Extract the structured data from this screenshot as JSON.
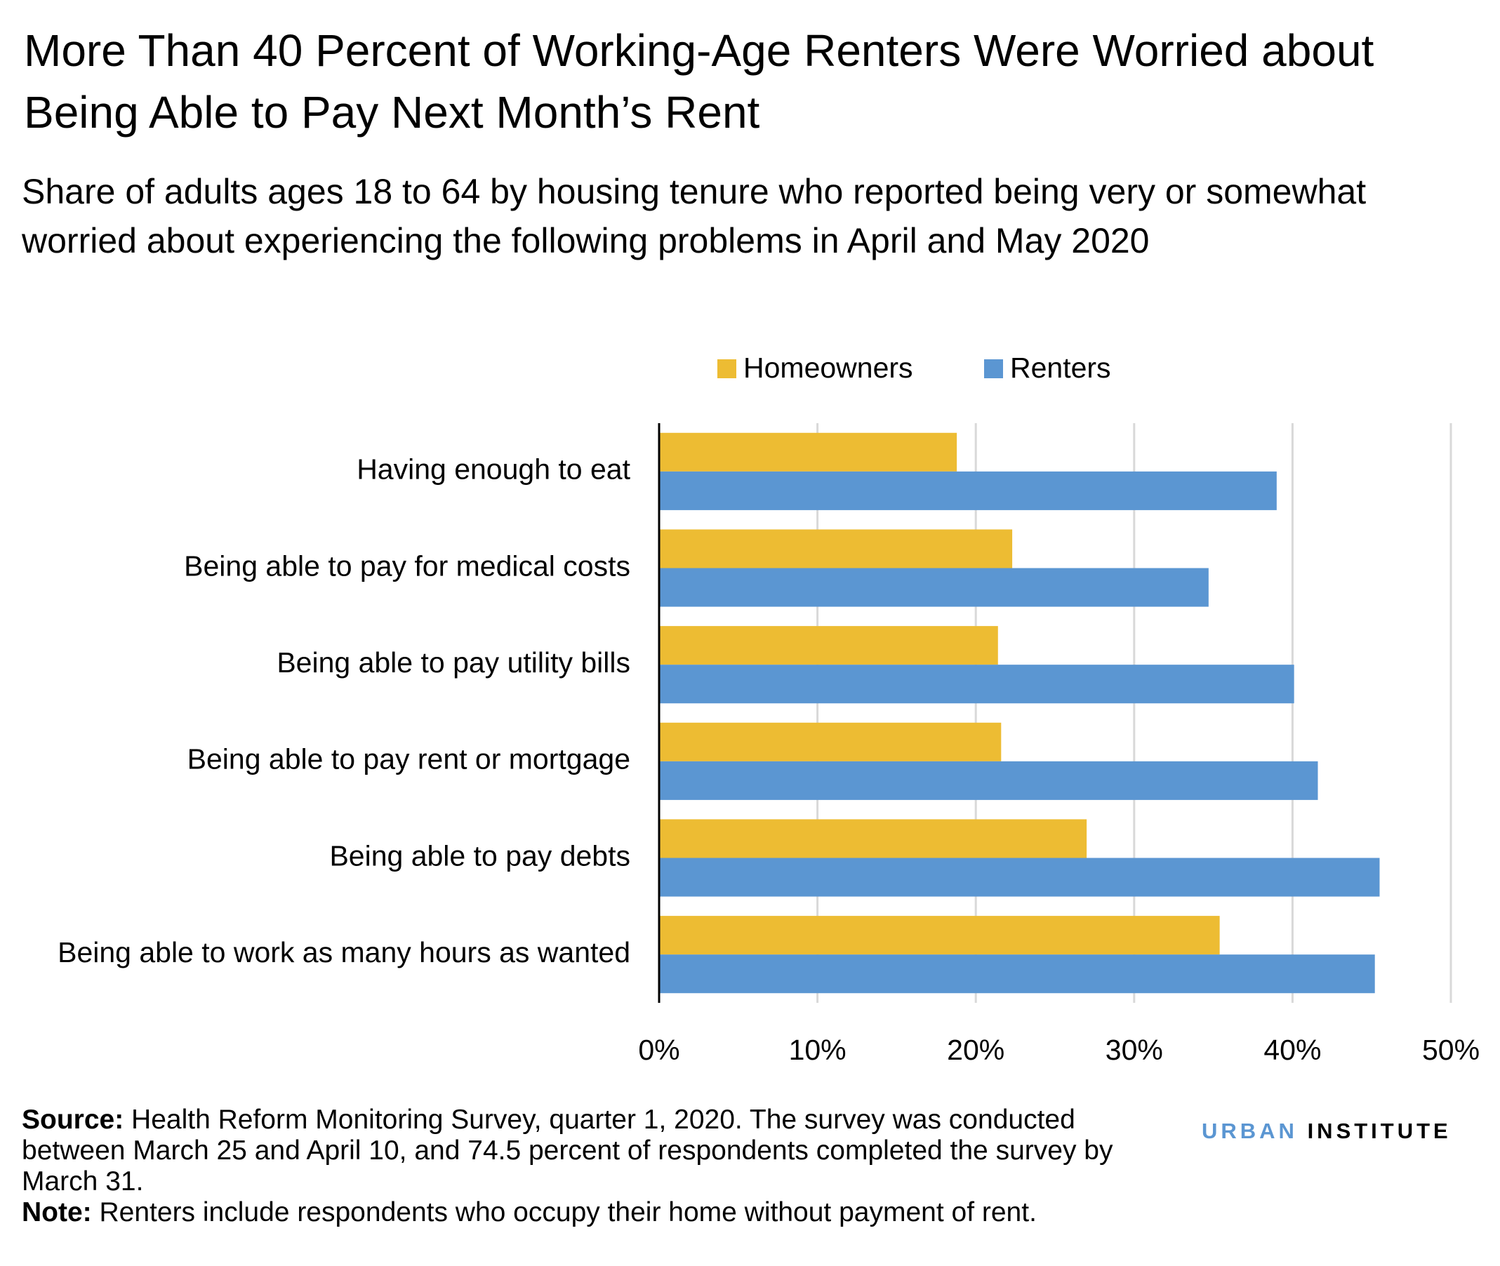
{
  "chart_data": {
    "type": "bar",
    "orientation": "horizontal",
    "title": "More Than 40 Percent of Working-Age Renters Were Worried about Being Able to Pay Next Month’s Rent",
    "subtitle": "Share of adults ages 18 to 64 by housing tenure who reported being very or somewhat worried about experiencing the following problems in April and May 2020",
    "categories": [
      "Having enough to eat",
      "Being able to pay for medical costs",
      "Being able to pay utility bills",
      "Being able to pay rent or mortgage",
      "Being able to pay debts",
      "Being able to work as many hours as wanted"
    ],
    "series": [
      {
        "name": "Homeowners",
        "color": "#edbc33",
        "values": [
          18.8,
          22.3,
          21.4,
          21.6,
          27.0,
          35.4
        ]
      },
      {
        "name": "Renters",
        "color": "#5b96d2",
        "values": [
          39.0,
          34.7,
          40.1,
          41.6,
          45.5,
          45.2
        ]
      }
    ],
    "xlim": [
      0,
      50
    ],
    "xticks": [
      {
        "value": 0,
        "label": "0%"
      },
      {
        "value": 10,
        "label": "10%"
      },
      {
        "value": 20,
        "label": "20%"
      },
      {
        "value": 30,
        "label": "30%"
      },
      {
        "value": 40,
        "label": "40%"
      },
      {
        "value": 50,
        "label": "50%"
      }
    ],
    "grid": true,
    "legend": "top",
    "source_label": "Source:",
    "source_text": "Health Reform Monitoring Survey, quarter 1, 2020. The survey was conducted between March 25 and April 10, and 74.5 percent of respondents completed the survey by March 31.",
    "note_label": "Note:",
    "note_text": "Renters include respondents who occupy their home without payment of rent.",
    "logo": [
      "URBAN",
      "INSTITUTE"
    ]
  }
}
